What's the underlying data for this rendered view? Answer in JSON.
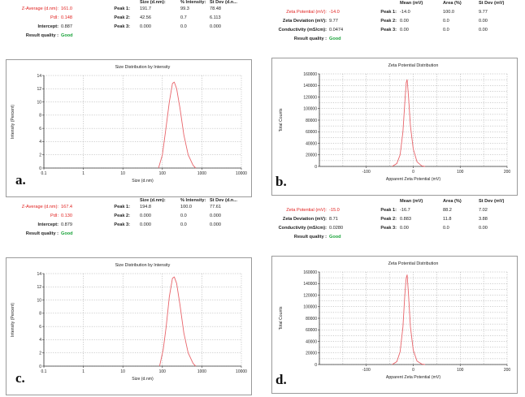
{
  "panels": [
    {
      "id": "a",
      "letter": "a.",
      "summary": {
        "left": [
          {
            "label": "Z-Average (d.nm):",
            "value": "161.0",
            "red": true
          },
          {
            "label": "PdI:",
            "value": "0.148",
            "red": true
          },
          {
            "label": "Intercept:",
            "value": "0.887",
            "red": false
          },
          {
            "label": "Result quality :",
            "value": "Good",
            "quality": true
          }
        ],
        "headers": [
          "Size (d.nm):",
          "% Intensity:",
          "St Dev (d.n..."
        ],
        "peaks": [
          {
            "label": "Peak 1:",
            "values": [
              "191.7",
              "99.3",
              "78.48"
            ]
          },
          {
            "label": "Peak 2:",
            "values": [
              "42.56",
              "0.7",
              "6.113"
            ]
          },
          {
            "label": "Peak 3:",
            "values": [
              "0.000",
              "0.0",
              "0.000"
            ]
          }
        ]
      },
      "chart_data": {
        "type": "line",
        "title": "Size Distribution by Intensity",
        "xlabel": "Size (d.nm)",
        "ylabel": "Intensity (Percent)",
        "xscale": "log",
        "xlim": [
          0.1,
          10000
        ],
        "ylim": [
          0,
          14
        ],
        "xticks": [
          0.1,
          1,
          10,
          100,
          1000,
          10000
        ],
        "xtick_labels": [
          "0.1",
          "1",
          "10",
          "100",
          "1000",
          "10000"
        ],
        "yticks": [
          0,
          2,
          4,
          6,
          8,
          10,
          12,
          14
        ],
        "grid": true,
        "line_color": "#e8646a",
        "series": [
          {
            "x": [
              80,
              100,
              120,
              150,
              180,
              200,
              230,
              280,
              350,
              450,
              600,
              700
            ],
            "y": [
              0,
              2.0,
              5.5,
              10.0,
              12.8,
              13.0,
              12.0,
              9.0,
              5.0,
              2.0,
              0.4,
              0
            ]
          }
        ]
      }
    },
    {
      "id": "b",
      "letter": "b.",
      "summary": {
        "left": [
          {
            "label": "Zeta Potential (mV):",
            "value": "-14.0",
            "red": true
          },
          {
            "label": "Zeta Deviation (mV):",
            "value": "9.77",
            "red": false
          },
          {
            "label": "Conductivity (mS/cm):",
            "value": "0.0474",
            "red": false
          },
          {
            "label": "Result quality :",
            "value": "Good",
            "quality": true
          }
        ],
        "headers": [
          "Mean (mV)",
          "Area (%)",
          "St Dev (mV)"
        ],
        "peaks": [
          {
            "label": "Peak 1:",
            "values": [
              "-14.0",
              "100.0",
              "9.77"
            ]
          },
          {
            "label": "Peak 2:",
            "values": [
              "0.00",
              "0.0",
              "0.00"
            ]
          },
          {
            "label": "Peak 3:",
            "values": [
              "0.00",
              "0.0",
              "0.00"
            ]
          }
        ]
      },
      "chart_data": {
        "type": "line",
        "title": "Zeta Potential Distribution",
        "xlabel": "Apparent Zeta Potential (mV)",
        "ylabel": "Total Counts",
        "xlim": [
          -200,
          200
        ],
        "ylim": [
          0,
          160000
        ],
        "xticks": [
          -100,
          0,
          100,
          200
        ],
        "xtick_labels": [
          "-100",
          "0",
          "100",
          "200"
        ],
        "yticks": [
          0,
          20000,
          40000,
          60000,
          80000,
          100000,
          120000,
          140000,
          160000
        ],
        "grid": true,
        "line_color": "#e8646a",
        "series": [
          {
            "x": [
              -45,
              -35,
              -28,
              -22,
              -18,
              -15,
              -13,
              -10,
              -6,
              0,
              8,
              18,
              25
            ],
            "y": [
              0,
              5000,
              20000,
              60000,
              110000,
              145000,
              150000,
              120000,
              70000,
              30000,
              8000,
              1000,
              0
            ]
          }
        ]
      }
    },
    {
      "id": "c",
      "letter": "c.",
      "summary": {
        "left": [
          {
            "label": "Z-Average (d.nm):",
            "value": "167.4",
            "red": true
          },
          {
            "label": "PdI:",
            "value": "0.130",
            "red": true
          },
          {
            "label": "Intercept:",
            "value": "0.879",
            "red": false
          },
          {
            "label": "Result quality :",
            "value": "Good",
            "quality": true
          }
        ],
        "headers": [
          "Size (d.nm):",
          "% Intensity:",
          "St Dev (d.n..."
        ],
        "peaks": [
          {
            "label": "Peak 1:",
            "values": [
              "194.8",
              "100.0",
              "77.61"
            ]
          },
          {
            "label": "Peak 2:",
            "values": [
              "0.000",
              "0.0",
              "0.000"
            ]
          },
          {
            "label": "Peak 3:",
            "values": [
              "0.000",
              "0.0",
              "0.000"
            ]
          }
        ]
      },
      "chart_data": {
        "type": "line",
        "title": "Size Distribution by Intensity",
        "xlabel": "Size (d.nm)",
        "ylabel": "Intensity (Percent)",
        "xscale": "log",
        "xlim": [
          0.1,
          10000
        ],
        "ylim": [
          0,
          14
        ],
        "xticks": [
          0.1,
          1,
          10,
          100,
          1000,
          10000
        ],
        "xtick_labels": [
          "0.1",
          "1",
          "10",
          "100",
          "1000",
          "10000"
        ],
        "yticks": [
          0,
          2,
          4,
          6,
          8,
          10,
          12,
          14
        ],
        "grid": true,
        "line_color": "#e8646a",
        "series": [
          {
            "x": [
              85,
              105,
              125,
              150,
              180,
              200,
              230,
              280,
              350,
              450,
              600,
              700
            ],
            "y": [
              0,
              2.5,
              6.0,
              10.5,
              13.3,
              13.5,
              12.5,
              9.2,
              5.0,
              2.0,
              0.4,
              0
            ]
          }
        ]
      }
    },
    {
      "id": "d",
      "letter": "d.",
      "summary": {
        "left": [
          {
            "label": "Zeta Potential (mV):",
            "value": "-15.0",
            "red": true
          },
          {
            "label": "Zeta Deviation (mV):",
            "value": "8.71",
            "red": false
          },
          {
            "label": "Conductivity (mS/cm):",
            "value": "0.0280",
            "red": false
          },
          {
            "label": "Result quality :",
            "value": "Good",
            "quality": true
          }
        ],
        "headers": [
          "Mean (mV)",
          "Area (%)",
          "St Dev (mV)"
        ],
        "peaks": [
          {
            "label": "Peak 1:",
            "values": [
              "-16.7",
              "88.2",
              "7.02"
            ]
          },
          {
            "label": "Peak 2:",
            "values": [
              "0.883",
              "11.8",
              "3.88"
            ]
          },
          {
            "label": "Peak 3:",
            "values": [
              "0.00",
              "0.0",
              "0.00"
            ]
          }
        ]
      },
      "chart_data": {
        "type": "line",
        "title": "Zeta Potential Distribution",
        "xlabel": "Apparent Zeta Potential (mV)",
        "ylabel": "Total Counts",
        "xlim": [
          -200,
          200
        ],
        "ylim": [
          0,
          160000
        ],
        "xticks": [
          -100,
          0,
          100,
          200
        ],
        "xtick_labels": [
          "-100",
          "0",
          "100",
          "200"
        ],
        "yticks": [
          0,
          20000,
          40000,
          60000,
          80000,
          100000,
          120000,
          140000,
          160000
        ],
        "grid": true,
        "line_color": "#e8646a",
        "series": [
          {
            "x": [
              -45,
              -35,
              -28,
              -22,
              -18,
              -15,
              -13,
              -10,
              -6,
              0,
              8,
              18,
              25
            ],
            "y": [
              0,
              5000,
              22000,
              65000,
              120000,
              150000,
              155000,
              120000,
              65000,
              25000,
              6000,
              800,
              0
            ]
          }
        ]
      }
    }
  ]
}
